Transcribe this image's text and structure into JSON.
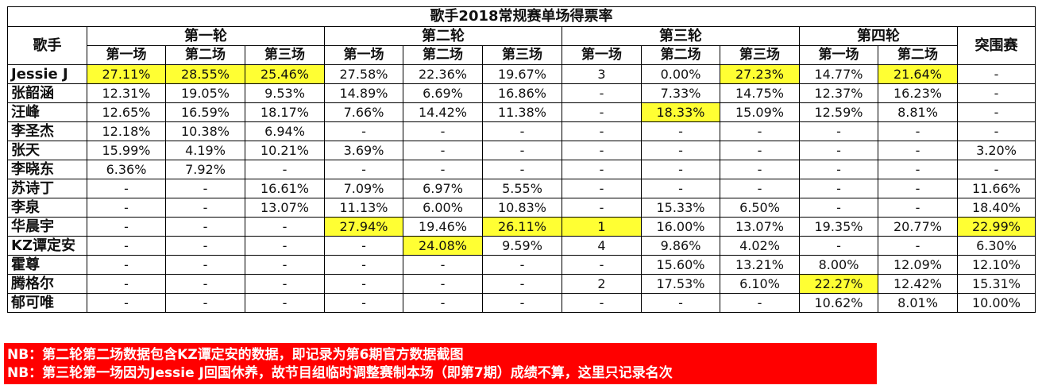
{
  "title": "歌手2018常规赛单场得票率",
  "header": {
    "singer_label": "歌手",
    "rounds": [
      "第一轮",
      "第二轮",
      "第三轮",
      "第四轮"
    ],
    "breakout_label": "突围赛",
    "sub_headers": [
      "第一场",
      "第二场",
      "第三场",
      "第一场",
      "第二场",
      "第三场",
      "第一场",
      "第二场",
      "第三场",
      "第一场",
      "第二场"
    ]
  },
  "rows": [
    {
      "name": "Jessie J",
      "cells": [
        "27.11%",
        "28.55%",
        "25.46%",
        "27.58%",
        "22.36%",
        "19.67%",
        "3",
        "0.00%",
        "27.23%",
        "14.77%",
        "21.64%",
        "-"
      ],
      "highlight": [
        0,
        1,
        2,
        8,
        10
      ]
    },
    {
      "name": "张韶涵",
      "cells": [
        "12.31%",
        "19.05%",
        "9.53%",
        "14.89%",
        "6.69%",
        "16.86%",
        "-",
        "7.33%",
        "14.75%",
        "12.37%",
        "16.23%",
        "-"
      ],
      "highlight": []
    },
    {
      "name": "汪峰",
      "cells": [
        "12.65%",
        "16.59%",
        "18.17%",
        "7.66%",
        "14.42%",
        "11.38%",
        "-",
        "18.33%",
        "15.09%",
        "12.59%",
        "8.81%",
        "-"
      ],
      "highlight": [
        7
      ]
    },
    {
      "name": "李圣杰",
      "cells": [
        "12.18%",
        "10.38%",
        "6.94%",
        "-",
        "-",
        "-",
        "-",
        "-",
        "-",
        "-",
        "-",
        "-"
      ],
      "highlight": []
    },
    {
      "name": "张天",
      "cells": [
        "15.99%",
        "4.19%",
        "10.21%",
        "3.69%",
        "-",
        "-",
        "-",
        "-",
        "-",
        "-",
        "-",
        "3.20%"
      ],
      "highlight": []
    },
    {
      "name": "李晓东",
      "cells": [
        "6.36%",
        "7.92%",
        "-",
        "-",
        "-",
        "-",
        "-",
        "-",
        "-",
        "-",
        "-",
        "-"
      ],
      "highlight": []
    },
    {
      "name": "苏诗丁",
      "cells": [
        "-",
        "-",
        "16.61%",
        "7.09%",
        "6.97%",
        "5.55%",
        "-",
        "-",
        "-",
        "-",
        "-",
        "11.66%"
      ],
      "highlight": []
    },
    {
      "name": "李泉",
      "cells": [
        "-",
        "-",
        "13.07%",
        "11.13%",
        "6.00%",
        "10.83%",
        "-",
        "15.33%",
        "6.50%",
        "-",
        "-",
        "18.40%"
      ],
      "highlight": []
    },
    {
      "name": "华晨宇",
      "cells": [
        "-",
        "-",
        "-",
        "27.94%",
        "19.46%",
        "26.11%",
        "1",
        "16.00%",
        "13.07%",
        "19.35%",
        "20.77%",
        "22.99%"
      ],
      "highlight": [
        3,
        5,
        6,
        11
      ]
    },
    {
      "name": "KZ谭定安",
      "cells": [
        "-",
        "-",
        "-",
        "-",
        "24.08%",
        "9.59%",
        "4",
        "9.86%",
        "4.02%",
        "-",
        "-",
        "6.30%"
      ],
      "highlight": [
        4
      ]
    },
    {
      "name": "霍尊",
      "cells": [
        "-",
        "-",
        "-",
        "-",
        "-",
        "-",
        "-",
        "15.60%",
        "13.21%",
        "8.00%",
        "12.09%",
        "12.10%"
      ],
      "highlight": []
    },
    {
      "name": "腾格尔",
      "cells": [
        "-",
        "-",
        "-",
        "-",
        "-",
        "-",
        "2",
        "17.53%",
        "6.10%",
        "22.27%",
        "12.42%",
        "15.31%"
      ],
      "highlight": [
        9
      ]
    },
    {
      "name": "郁可唯",
      "cells": [
        "-",
        "-",
        "-",
        "-",
        "-",
        "-",
        "-",
        "-",
        "-",
        "10.62%",
        "8.01%",
        "10.00%"
      ],
      "highlight": []
    }
  ],
  "notes": [
    "NB：第二轮第二场数据包含KZ谭定安的数据，即记录为第6期官方数据截图",
    "NB：第三轮第一场因为Jessie J回国休养，故节目组临时调整赛制本场（即第7期）成绩不算，这里只记录名次"
  ],
  "colors": {
    "highlight": "#ffff33",
    "notes_background": "#ff0000",
    "notes_text": "#ffffff"
  }
}
